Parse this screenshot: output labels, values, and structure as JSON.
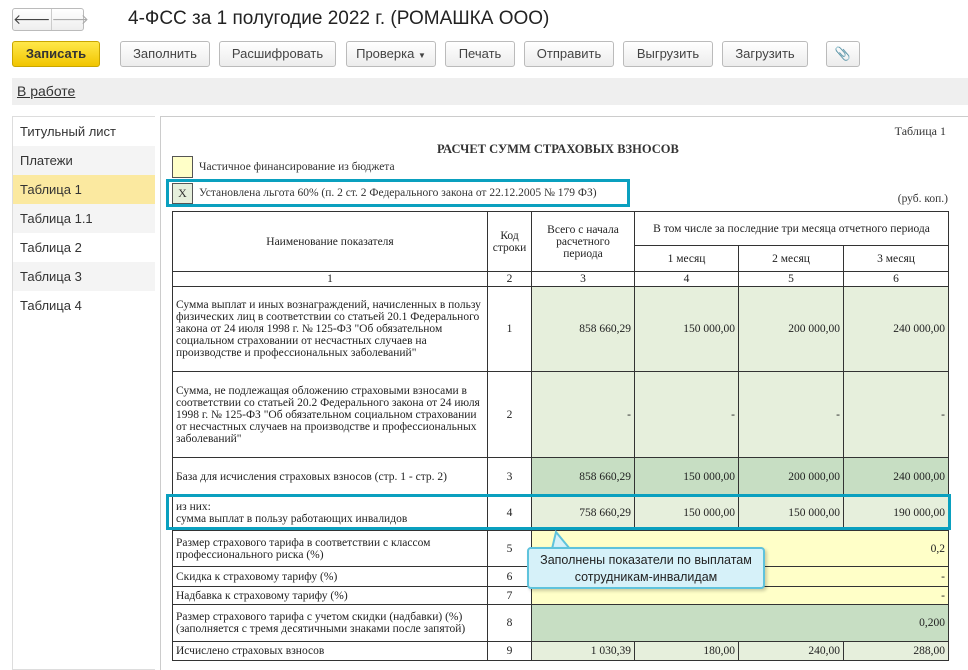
{
  "window": {
    "title": "4-ФСС за 1 полугодие 2022 г. (РОМАШКА ООО)",
    "back": "🡐",
    "forward": "🡒"
  },
  "toolbar": {
    "save": "Записать",
    "fill": "Заполнить",
    "decode": "Расшифровать",
    "check": "Проверка",
    "print": "Печать",
    "send": "Отправить",
    "export": "Выгрузить",
    "import": "Загрузить",
    "attach_icon": "paperclip-icon"
  },
  "status": {
    "link": "В работе"
  },
  "sidebar": {
    "items": [
      {
        "label": "Титульный лист"
      },
      {
        "label": "Платежи"
      },
      {
        "label": "Таблица 1",
        "selected": true
      },
      {
        "label": "Таблица 1.1"
      },
      {
        "label": "Таблица 2"
      },
      {
        "label": "Таблица 3"
      },
      {
        "label": "Таблица 4"
      }
    ]
  },
  "doc": {
    "table_no": "Таблица 1",
    "heading": "РАСЧЕТ  СУММ СТРАХОВЫХ  ВЗНОСОВ",
    "budget_label": "Частичное финансирование из бюджета",
    "budget_value": "",
    "benefit_label": "Установлена льгота 60% (п. 2 ст. 2 Федерального закона от 22.12.2005 № 179 ФЗ)",
    "benefit_value": "X",
    "units": "(руб. коп.)",
    "headers": {
      "name": "Наименование показателя",
      "code": "Код строки",
      "total": "Всего с начала расчетного периода",
      "last3": "В том числе за последние три месяца отчетного периода",
      "m1": "1 месяц",
      "m2": "2 месяц",
      "m3": "3 месяц",
      "n": [
        "1",
        "2",
        "3",
        "4",
        "5",
        "6"
      ]
    },
    "rows": [
      {
        "name": "Сумма выплат и иных вознаграждений, начисленных в пользу физических лиц в соответствии со статьей 20.1 Федерального закона от 24 июля 1998 г. № 125-ФЗ \"Об обязательном социальном страховании от несчастных случаев на производстве и профессиональных заболеваний\"",
        "code": "1",
        "total": "858 660,29",
        "m1": "150 000,00",
        "m2": "200 000,00",
        "m3": "240 000,00"
      },
      {
        "name": "Сумма, не подлежащая обложению страховыми взносами в соответствии со статьей 20.2 Федерального закона от 24 июля 1998 г. № 125-ФЗ \"Об обязательном социальном страховании от несчастных случаев на производстве и профессиональных заболеваний\"",
        "code": "2",
        "total": "-",
        "m1": "-",
        "m2": "-",
        "m3": "-"
      },
      {
        "name": "База для исчисления страховых взносов (стр. 1 - стр. 2)",
        "code": "3",
        "total": "858 660,29",
        "m1": "150 000,00",
        "m2": "200 000,00",
        "m3": "240 000,00"
      },
      {
        "name1": "из них:",
        "name2": "сумма выплат в пользу работающих инвалидов",
        "code": "4",
        "total": "758 660,29",
        "m1": "150 000,00",
        "m2": "150 000,00",
        "m3": "190 000,00"
      },
      {
        "name": "Размер страхового тарифа в соответствии с классом профессионального риска (%)",
        "code": "5",
        "value": "0,2"
      },
      {
        "name": "Скидка к страховому тарифу (%)",
        "code": "6",
        "value": "-"
      },
      {
        "name": "Надбавка к страховому тарифу (%)",
        "code": "7",
        "value": "-"
      },
      {
        "name": "Размер страхового тарифа с учетом скидки (надбавки) (%) (заполняется с тремя десятичными знаками после запятой)",
        "code": "8",
        "value": "0,200"
      },
      {
        "name": "Исчислено страховых взносов",
        "code": "9",
        "total": "1 030,39",
        "m1": "180,00",
        "m2": "240,00",
        "m3": "288,00"
      }
    ]
  },
  "callout": {
    "text": "Заполнены показатели по выплатам сотрудникам-инвалидам"
  },
  "colors": {
    "highlight": "#0aa0bf",
    "green_light": "#e6efdc",
    "green_dark": "#c7dec3",
    "yellow": "#ffffc8",
    "selected": "#fbe9a0"
  }
}
